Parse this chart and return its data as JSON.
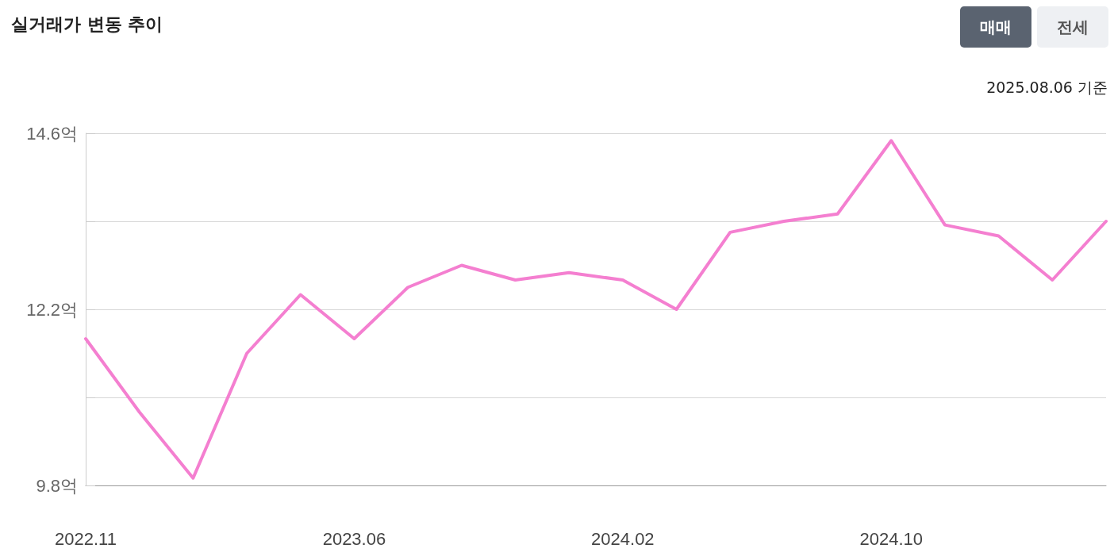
{
  "chart_data": {
    "type": "line",
    "title": "실거래가 변동 추이",
    "annotations": [
      "매매",
      "전세",
      "2025.08.06 기준"
    ],
    "categories": [
      "2022.11",
      null,
      null,
      null,
      null,
      "2023.06",
      null,
      null,
      null,
      null,
      "2024.02",
      null,
      null,
      null,
      null,
      "2024.10",
      null,
      null,
      null,
      null
    ],
    "series": [
      {
        "color": "#f47fd0",
        "values": [
          11.8,
          10.8,
          9.9,
          11.6,
          12.4,
          11.8,
          12.5,
          12.8,
          12.6,
          12.7,
          12.6,
          12.2,
          13.25,
          13.4,
          13.5,
          14.5,
          13.35,
          13.2,
          12.6,
          13.4
        ]
      }
    ],
    "ylim": [
      9.8,
      14.6
    ],
    "yticks": [
      {
        "value": 9.8,
        "label": "9.8억"
      },
      {
        "value": 11.0,
        "label": null
      },
      {
        "value": 12.2,
        "label": "12.2억"
      },
      {
        "value": 13.4,
        "label": null
      },
      {
        "value": 14.6,
        "label": "14.6억"
      }
    ],
    "grid": "y",
    "marker": "none",
    "line_style": "solid"
  }
}
